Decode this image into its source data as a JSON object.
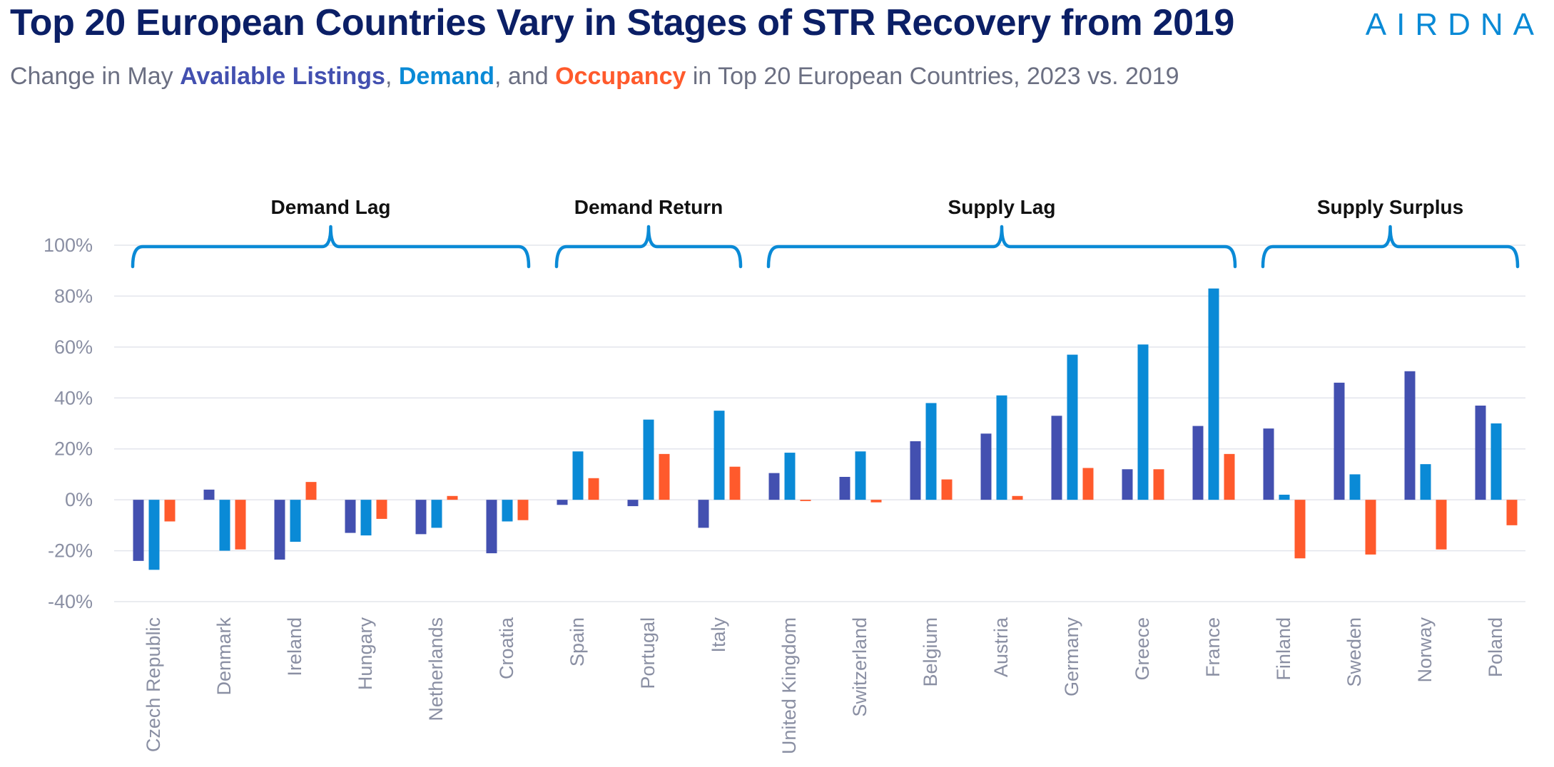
{
  "header": {
    "title": "Top 20 European Countries Vary in Stages of STR Recovery from 2019",
    "logo_text": "AIRDNA",
    "subtitle": {
      "prefix": "Change in May ",
      "listings": "Available Listings",
      "sep1": ", ",
      "demand": "Demand",
      "sep2": ", and ",
      "occupancy": "Occupancy",
      "suffix": " in Top 20 European Countries, 2023 vs. 2019"
    }
  },
  "colors": {
    "listings": "#4350b0",
    "demand": "#0a8ad6",
    "occupancy": "#ff5a2c",
    "grid": "#e3e5ec",
    "bracket": "#0a8ad6"
  },
  "chart_data": {
    "type": "bar",
    "title": "Top 20 European Countries Vary in Stages of STR Recovery from 2019",
    "subtitle": "Change in May Available Listings, Demand, and Occupancy in Top 20 European Countries, 2023 vs. 2019",
    "xlabel": "",
    "ylabel": "",
    "ylim": [
      -40,
      100
    ],
    "yticks": [
      100,
      80,
      60,
      40,
      20,
      0,
      -20,
      -40
    ],
    "ytick_labels": [
      "100%",
      "80%",
      "60%",
      "40%",
      "20%",
      "0%",
      "-20%",
      "-40%"
    ],
    "grid": true,
    "categories": [
      "Czech Republic",
      "Denmark",
      "Ireland",
      "Hungary",
      "Netherlands",
      "Croatia",
      "Spain",
      "Portugal",
      "Italy",
      "United Kingdom",
      "Switzerland",
      "Belgium",
      "Austria",
      "Germany",
      "Greece",
      "France",
      "Finland",
      "Sweden",
      "Norway",
      "Poland"
    ],
    "series": [
      {
        "name": "Available Listings",
        "values": [
          -24,
          4,
          -23.5,
          -13,
          -13.5,
          -21,
          -2,
          -2.5,
          -11,
          10.5,
          9,
          23,
          26,
          33,
          12,
          29,
          28,
          46,
          50.5,
          37
        ]
      },
      {
        "name": "Demand",
        "values": [
          -27.5,
          -20,
          -16.5,
          -14,
          -11,
          -8.5,
          19,
          31.5,
          35,
          18.5,
          19,
          38,
          41,
          57,
          61,
          83,
          2,
          10,
          14,
          30
        ]
      },
      {
        "name": "Occupancy",
        "values": [
          -8.5,
          -19.5,
          7,
          -7.5,
          1.5,
          -8,
          8.5,
          18,
          13,
          -0.5,
          -1,
          8,
          1.5,
          12.5,
          12,
          18,
          -23,
          -21.5,
          -19.5,
          -10
        ]
      }
    ],
    "groups": [
      {
        "label": "Demand Lag",
        "start": 0,
        "end": 5
      },
      {
        "label": "Demand Return",
        "start": 6,
        "end": 8
      },
      {
        "label": "Supply Lag",
        "start": 9,
        "end": 15
      },
      {
        "label": "Supply Surplus",
        "start": 16,
        "end": 19
      }
    ]
  }
}
